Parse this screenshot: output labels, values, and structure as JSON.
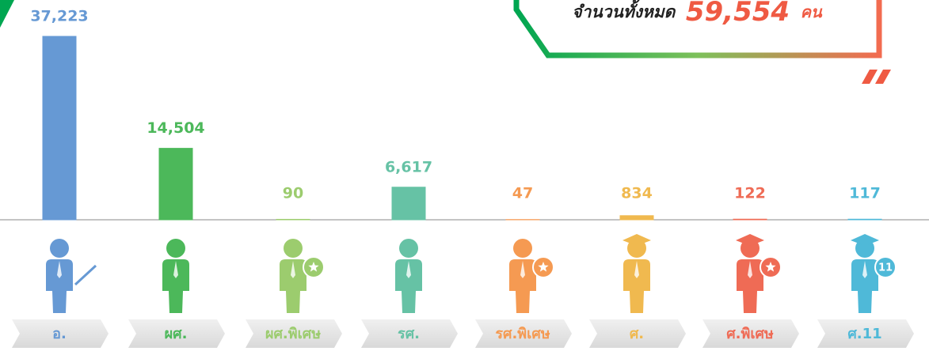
{
  "chart_data": {
    "type": "bar",
    "total": {
      "label": "จำนวนทั้งหมด",
      "value": "59,554",
      "unit": "คน"
    },
    "categories": [
      "อ.",
      "ผศ.",
      "ผศ.พิเศษ",
      "รศ.",
      "รศ.พิเศษ",
      "ศ.",
      "ศ.พิเศษ",
      "ศ.11"
    ],
    "values": [
      37223,
      14504,
      90,
      6617,
      47,
      834,
      122,
      117
    ],
    "value_labels": [
      "37,223",
      "14,504",
      "90",
      "6,617",
      "47",
      "834",
      "122",
      "117"
    ],
    "colors": [
      "#6699d4",
      "#4cb85a",
      "#9ccc6e",
      "#66c2a5",
      "#f59a52",
      "#f0b94f",
      "#ef6b55",
      "#4fb9d8"
    ],
    "icon_badge": "11",
    "ylim": [
      0,
      37223
    ]
  }
}
